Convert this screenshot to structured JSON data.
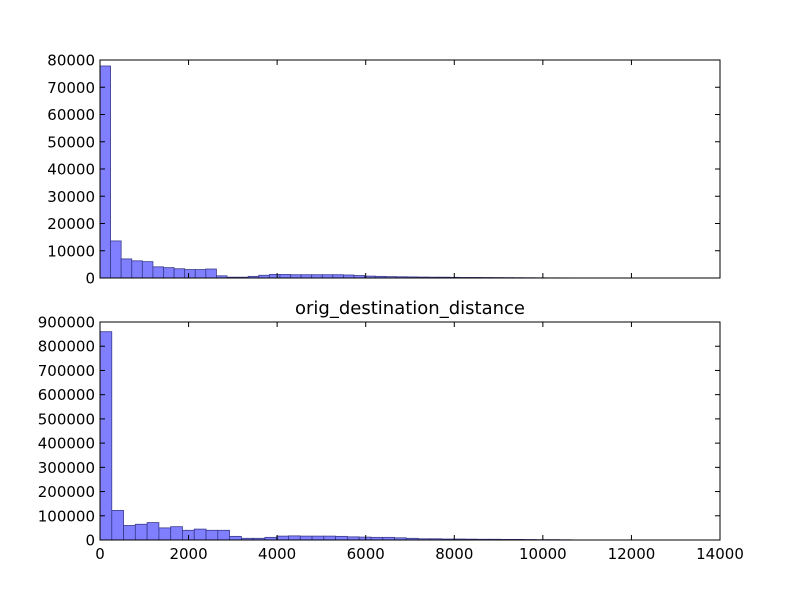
{
  "figure": {
    "background": "#ffffff"
  },
  "chart_data": [
    {
      "type": "bar",
      "subtype": "histogram",
      "title": "",
      "xlabel": "",
      "ylabel": "",
      "xlim": [
        0,
        14000
      ],
      "ylim": [
        0,
        80000
      ],
      "yticks": [
        "0",
        "10000",
        "20000",
        "30000",
        "40000",
        "50000",
        "60000",
        "70000",
        "80000"
      ],
      "xticks_visible": false,
      "bin_width": 239,
      "bar_color": "#7f7fff",
      "edge_color": "#3a3a8c",
      "grid": false,
      "legend": "none",
      "values": [
        77800,
        13600,
        7000,
        6300,
        6000,
        4100,
        3800,
        3400,
        3100,
        3100,
        3300,
        800,
        300,
        300,
        600,
        1000,
        1300,
        1300,
        1200,
        1200,
        1200,
        1200,
        1200,
        1100,
        900,
        700,
        600,
        500,
        450,
        400,
        350,
        300,
        300,
        250,
        200,
        200,
        180,
        160,
        140,
        120,
        100,
        80,
        60,
        50,
        40,
        30,
        20,
        20,
        10,
        10
      ]
    },
    {
      "type": "bar",
      "subtype": "histogram",
      "title": "orig_destination_distance",
      "xlabel": "",
      "ylabel": "",
      "xlim": [
        0,
        14000
      ],
      "ylim": [
        0,
        900000
      ],
      "xticks": [
        "0",
        "2000",
        "4000",
        "6000",
        "8000",
        "10000",
        "12000",
        "14000"
      ],
      "yticks": [
        "0",
        "100000",
        "200000",
        "300000",
        "400000",
        "500000",
        "600000",
        "700000",
        "800000",
        "900000"
      ],
      "bin_width": 266,
      "bar_color": "#7f7fff",
      "edge_color": "#3a3a8c",
      "grid": false,
      "legend": "none",
      "values": [
        860000,
        122000,
        60000,
        65000,
        72000,
        50000,
        55000,
        40000,
        45000,
        40000,
        40000,
        15000,
        7000,
        7000,
        11000,
        16000,
        17000,
        16000,
        16000,
        16000,
        15000,
        13000,
        12000,
        11000,
        11000,
        9000,
        7000,
        5000,
        5000,
        4000,
        4000,
        3500,
        3000,
        3000,
        2500,
        2500,
        2000,
        1500,
        1500,
        1000
      ]
    }
  ]
}
